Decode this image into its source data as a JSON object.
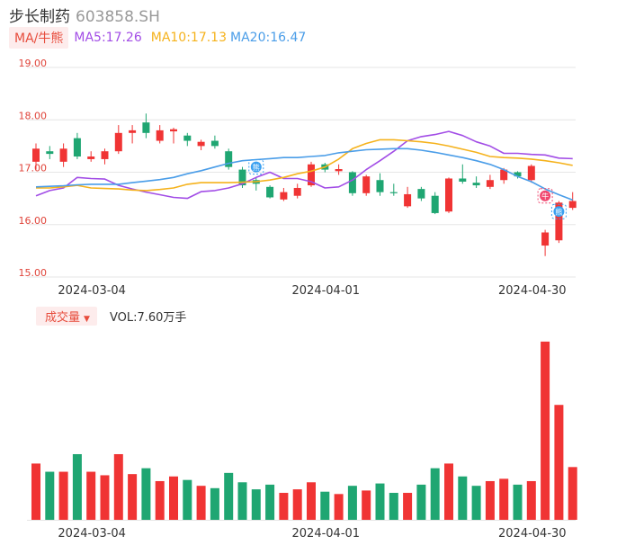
{
  "header": {
    "name": "步长制药",
    "code": "603858.SH",
    "indicator_tag": "MA/牛熊",
    "ma5_label": "MA5:17.26",
    "ma10_label": "MA10:17.13",
    "ma20_label": "MA20:16.47",
    "colors": {
      "ma5": "#a24de6",
      "ma10": "#f5b21c",
      "ma20": "#4a9de8",
      "up": "#f03434",
      "down": "#1fa672"
    }
  },
  "volume_header": {
    "tag": "成交量",
    "vol_label": "VOL:7.60万手"
  },
  "chart_data": [
    {
      "type": "candlestick",
      "ylim": [
        15.0,
        19.0
      ],
      "y_ticks": [
        "19.00",
        "18.00",
        "17.00",
        "16.00",
        "15.00"
      ],
      "x_ticks": [
        {
          "index": 4,
          "label": "2024-03-04"
        },
        {
          "index": 21,
          "label": "2024-04-01"
        },
        {
          "index": 36,
          "label": "2024-04-30"
        }
      ],
      "grid": true,
      "candles": [
        {
          "o": 17.2,
          "c": 17.45,
          "h": 17.55,
          "l": 17.05
        },
        {
          "o": 17.4,
          "c": 17.35,
          "h": 17.5,
          "l": 17.25
        },
        {
          "o": 17.2,
          "c": 17.45,
          "h": 17.55,
          "l": 17.1
        },
        {
          "o": 17.65,
          "c": 17.3,
          "h": 17.75,
          "l": 17.25
        },
        {
          "o": 17.25,
          "c": 17.3,
          "h": 17.4,
          "l": 17.2
        },
        {
          "o": 17.25,
          "c": 17.4,
          "h": 17.45,
          "l": 17.15
        },
        {
          "o": 17.4,
          "c": 17.75,
          "h": 17.9,
          "l": 17.35
        },
        {
          "o": 17.75,
          "c": 17.8,
          "h": 17.9,
          "l": 17.55
        },
        {
          "o": 17.95,
          "c": 17.75,
          "h": 18.12,
          "l": 17.65
        },
        {
          "o": 17.6,
          "c": 17.8,
          "h": 17.9,
          "l": 17.55
        },
        {
          "o": 17.78,
          "c": 17.82,
          "h": 17.85,
          "l": 17.55
        },
        {
          "o": 17.7,
          "c": 17.6,
          "h": 17.75,
          "l": 17.5
        },
        {
          "o": 17.5,
          "c": 17.58,
          "h": 17.62,
          "l": 17.42
        },
        {
          "o": 17.6,
          "c": 17.5,
          "h": 17.7,
          "l": 17.45
        },
        {
          "o": 17.4,
          "c": 17.1,
          "h": 17.45,
          "l": 17.05
        },
        {
          "o": 17.05,
          "c": 16.75,
          "h": 17.1,
          "l": 16.7
        },
        {
          "o": 16.85,
          "c": 16.78,
          "h": 16.9,
          "l": 16.65
        },
        {
          "o": 16.72,
          "c": 16.52,
          "h": 16.75,
          "l": 16.5
        },
        {
          "o": 16.48,
          "c": 16.62,
          "h": 16.7,
          "l": 16.45
        },
        {
          "o": 16.55,
          "c": 16.7,
          "h": 16.78,
          "l": 16.5
        },
        {
          "o": 16.75,
          "c": 17.15,
          "h": 17.2,
          "l": 16.72
        },
        {
          "o": 17.15,
          "c": 17.05,
          "h": 17.18,
          "l": 17.0
        },
        {
          "o": 17.02,
          "c": 17.06,
          "h": 17.15,
          "l": 16.95
        },
        {
          "o": 17.0,
          "c": 16.6,
          "h": 17.02,
          "l": 16.55
        },
        {
          "o": 16.6,
          "c": 16.92,
          "h": 16.95,
          "l": 16.55
        },
        {
          "o": 16.85,
          "c": 16.62,
          "h": 16.98,
          "l": 16.55
        },
        {
          "o": 16.62,
          "c": 16.6,
          "h": 16.78,
          "l": 16.55
        },
        {
          "o": 16.35,
          "c": 16.58,
          "h": 16.72,
          "l": 16.32
        },
        {
          "o": 16.68,
          "c": 16.5,
          "h": 16.72,
          "l": 16.45
        },
        {
          "o": 16.55,
          "c": 16.22,
          "h": 16.62,
          "l": 16.2
        },
        {
          "o": 16.25,
          "c": 16.88,
          "h": 16.9,
          "l": 16.22
        },
        {
          "o": 16.88,
          "c": 16.82,
          "h": 17.15,
          "l": 16.78
        },
        {
          "o": 16.8,
          "c": 16.75,
          "h": 16.92,
          "l": 16.7
        },
        {
          "o": 16.72,
          "c": 16.85,
          "h": 16.95,
          "l": 16.68
        },
        {
          "o": 16.85,
          "c": 17.05,
          "h": 17.08,
          "l": 16.78
        },
        {
          "o": 17.0,
          "c": 16.92,
          "h": 17.02,
          "l": 16.88
        },
        {
          "o": 16.85,
          "c": 17.12,
          "h": 17.15,
          "l": 16.8
        },
        {
          "o": 15.6,
          "c": 15.85,
          "h": 15.9,
          "l": 15.4
        },
        {
          "o": 15.7,
          "c": 16.42,
          "h": 16.45,
          "l": 15.65
        },
        {
          "o": 16.32,
          "c": 16.45,
          "h": 16.62,
          "l": 16.28
        }
      ],
      "series": [
        {
          "name": "MA5",
          "values": [
            16.55,
            16.65,
            16.7,
            16.9,
            16.88,
            16.87,
            16.75,
            16.68,
            16.62,
            16.57,
            16.52,
            16.5,
            16.63,
            16.65,
            16.7,
            16.78,
            16.9,
            17.0,
            16.88,
            16.88,
            16.82,
            16.7,
            16.72,
            16.85,
            17.05,
            17.22,
            17.4,
            17.6,
            17.68,
            17.72,
            17.78,
            17.7,
            17.58,
            17.5,
            17.36,
            17.36,
            17.34,
            17.33,
            17.27,
            17.26
          ]
        },
        {
          "name": "MA10",
          "values": [
            16.7,
            16.7,
            16.72,
            16.75,
            16.7,
            16.69,
            16.68,
            16.66,
            16.65,
            16.67,
            16.7,
            16.77,
            16.8,
            16.8,
            16.8,
            16.81,
            16.82,
            16.85,
            16.9,
            16.97,
            17.02,
            17.1,
            17.25,
            17.45,
            17.55,
            17.62,
            17.62,
            17.6,
            17.58,
            17.55,
            17.5,
            17.44,
            17.38,
            17.3,
            17.28,
            17.27,
            17.25,
            17.22,
            17.18,
            17.13
          ]
        },
        {
          "name": "MA20",
          "values": [
            16.72,
            16.73,
            16.74,
            16.76,
            16.77,
            16.77,
            16.77,
            16.8,
            16.83,
            16.86,
            16.9,
            16.97,
            17.03,
            17.1,
            17.17,
            17.22,
            17.24,
            17.26,
            17.28,
            17.28,
            17.3,
            17.32,
            17.37,
            17.4,
            17.43,
            17.44,
            17.45,
            17.45,
            17.42,
            17.38,
            17.33,
            17.28,
            17.22,
            17.15,
            17.05,
            16.92,
            16.82,
            16.68,
            16.57,
            16.47
          ]
        }
      ],
      "markers": [
        {
          "index": 16,
          "price": 17.1,
          "label": "熊",
          "color": "#3aa0f0"
        },
        {
          "index": 37,
          "price": 16.55,
          "label": "牛",
          "color": "#f0476f"
        },
        {
          "index": 38,
          "price": 16.25,
          "label": "熊",
          "color": "#3aa0f0"
        }
      ]
    },
    {
      "type": "bar",
      "name": "成交量",
      "ylim": [
        0,
        7.9
      ],
      "values": [
        2.4,
        2.05,
        2.05,
        2.8,
        2.05,
        1.9,
        2.8,
        1.95,
        2.2,
        1.65,
        1.85,
        1.7,
        1.45,
        1.35,
        2.0,
        1.6,
        1.3,
        1.5,
        1.15,
        1.3,
        1.6,
        1.2,
        1.1,
        1.45,
        1.25,
        1.55,
        1.15,
        1.15,
        1.5,
        2.2,
        2.4,
        1.85,
        1.45,
        1.65,
        1.75,
        1.5,
        1.65,
        7.6,
        4.9,
        2.25
      ],
      "x_ticks": [
        {
          "index": 4,
          "label": "2024-03-04"
        },
        {
          "index": 21,
          "label": "2024-04-01"
        },
        {
          "index": 36,
          "label": "2024-04-30"
        }
      ]
    }
  ]
}
